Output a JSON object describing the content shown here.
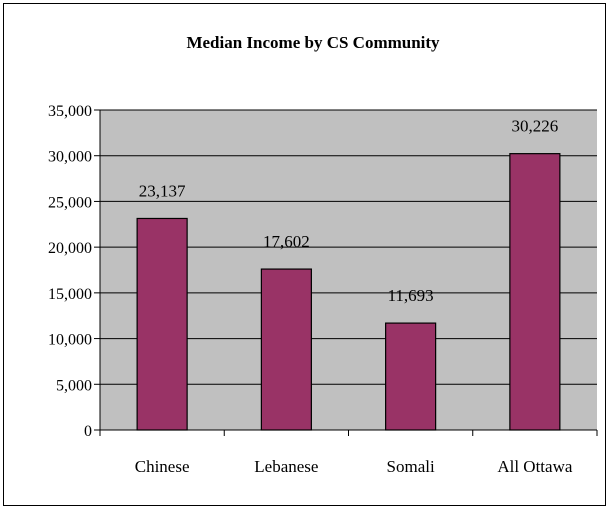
{
  "chart_data": {
    "type": "bar",
    "title": "Median Income by CS Community",
    "xlabel": "",
    "ylabel": "",
    "categories": [
      "Chinese",
      "Lebanese",
      "Somali",
      "All Ottawa"
    ],
    "values": [
      23137,
      17602,
      11693,
      30226
    ],
    "value_labels": [
      "23,137",
      "17,602",
      "11,693",
      "30,226"
    ],
    "ylim": [
      0,
      35000
    ],
    "yticks": [
      0,
      5000,
      10000,
      15000,
      20000,
      25000,
      30000,
      35000
    ],
    "ytick_labels": [
      "0",
      "5,000",
      "10,000",
      "15,000",
      "20,000",
      "25,000",
      "30,000",
      "35,000"
    ],
    "grid": true,
    "legend": "none",
    "colors": {
      "bar_fill": "#993366",
      "bar_stroke": "#000000",
      "plot_background": "#c0c0c0",
      "gridline": "#000000"
    }
  }
}
